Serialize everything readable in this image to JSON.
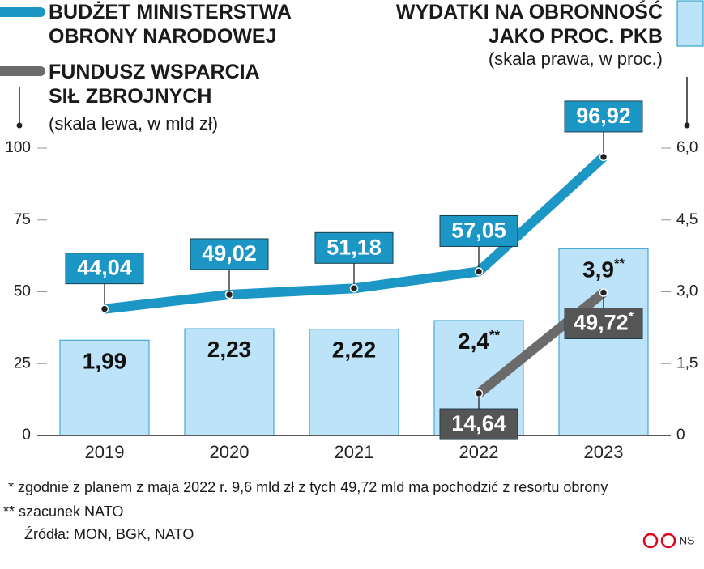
{
  "chart_data": {
    "type": "bar",
    "categories": [
      "2019",
      "2020",
      "2021",
      "2022",
      "2023"
    ],
    "series": [
      {
        "name": "WYDATKI NA OBRONNOŚĆ JAKO PROC. PKB",
        "type": "bar",
        "axis": "y2",
        "color": "#bde3f8",
        "values": [
          1.99,
          2.23,
          2.22,
          2.4,
          3.9
        ],
        "value_labels": [
          "1,99",
          "2,23",
          "2,22",
          "2,4**",
          "3,9**"
        ]
      },
      {
        "name": "BUDŻET MINISTERSTWA OBRONY NARODOWEJ",
        "type": "line",
        "color": "#1b96c5",
        "values": [
          44.04,
          49.02,
          51.18,
          57.05,
          96.92
        ],
        "value_labels": [
          "44,04",
          "49,02",
          "51,18",
          "57,05",
          "96,92"
        ]
      },
      {
        "name": "FUNDUSZ WSPARCIA SIŁ ZBROJNYCH",
        "type": "line",
        "color": "#6b6b6b",
        "values": [
          null,
          null,
          null,
          14.64,
          49.72
        ],
        "value_labels": [
          null,
          null,
          null,
          "14,64",
          "49,72*"
        ]
      }
    ],
    "ylim": [
      0,
      100
    ],
    "yticks": [
      0,
      25,
      50,
      75,
      100
    ],
    "y2lim": [
      0,
      6
    ],
    "y2ticks": [
      0,
      {
        "value": 1.5,
        "label": "1,5"
      },
      {
        "value": 3,
        "label": "3,0"
      },
      {
        "value": 4.5,
        "label": "4,5"
      },
      {
        "value": 6,
        "label": "6,0"
      }
    ],
    "left_axis_note": "(skala lewa, w mld zł)",
    "right_axis_note": "(skala prawa, w proc.)",
    "footnotes": [
      "* zgodnie z planem z maja 2022 r. 9,6 mld zł z tych 49,72 mld ma pochodzić z resortu obrony",
      "** szacunek NATO"
    ],
    "source": "Źródła: MON, BGK, NATO",
    "credit": "NS"
  }
}
